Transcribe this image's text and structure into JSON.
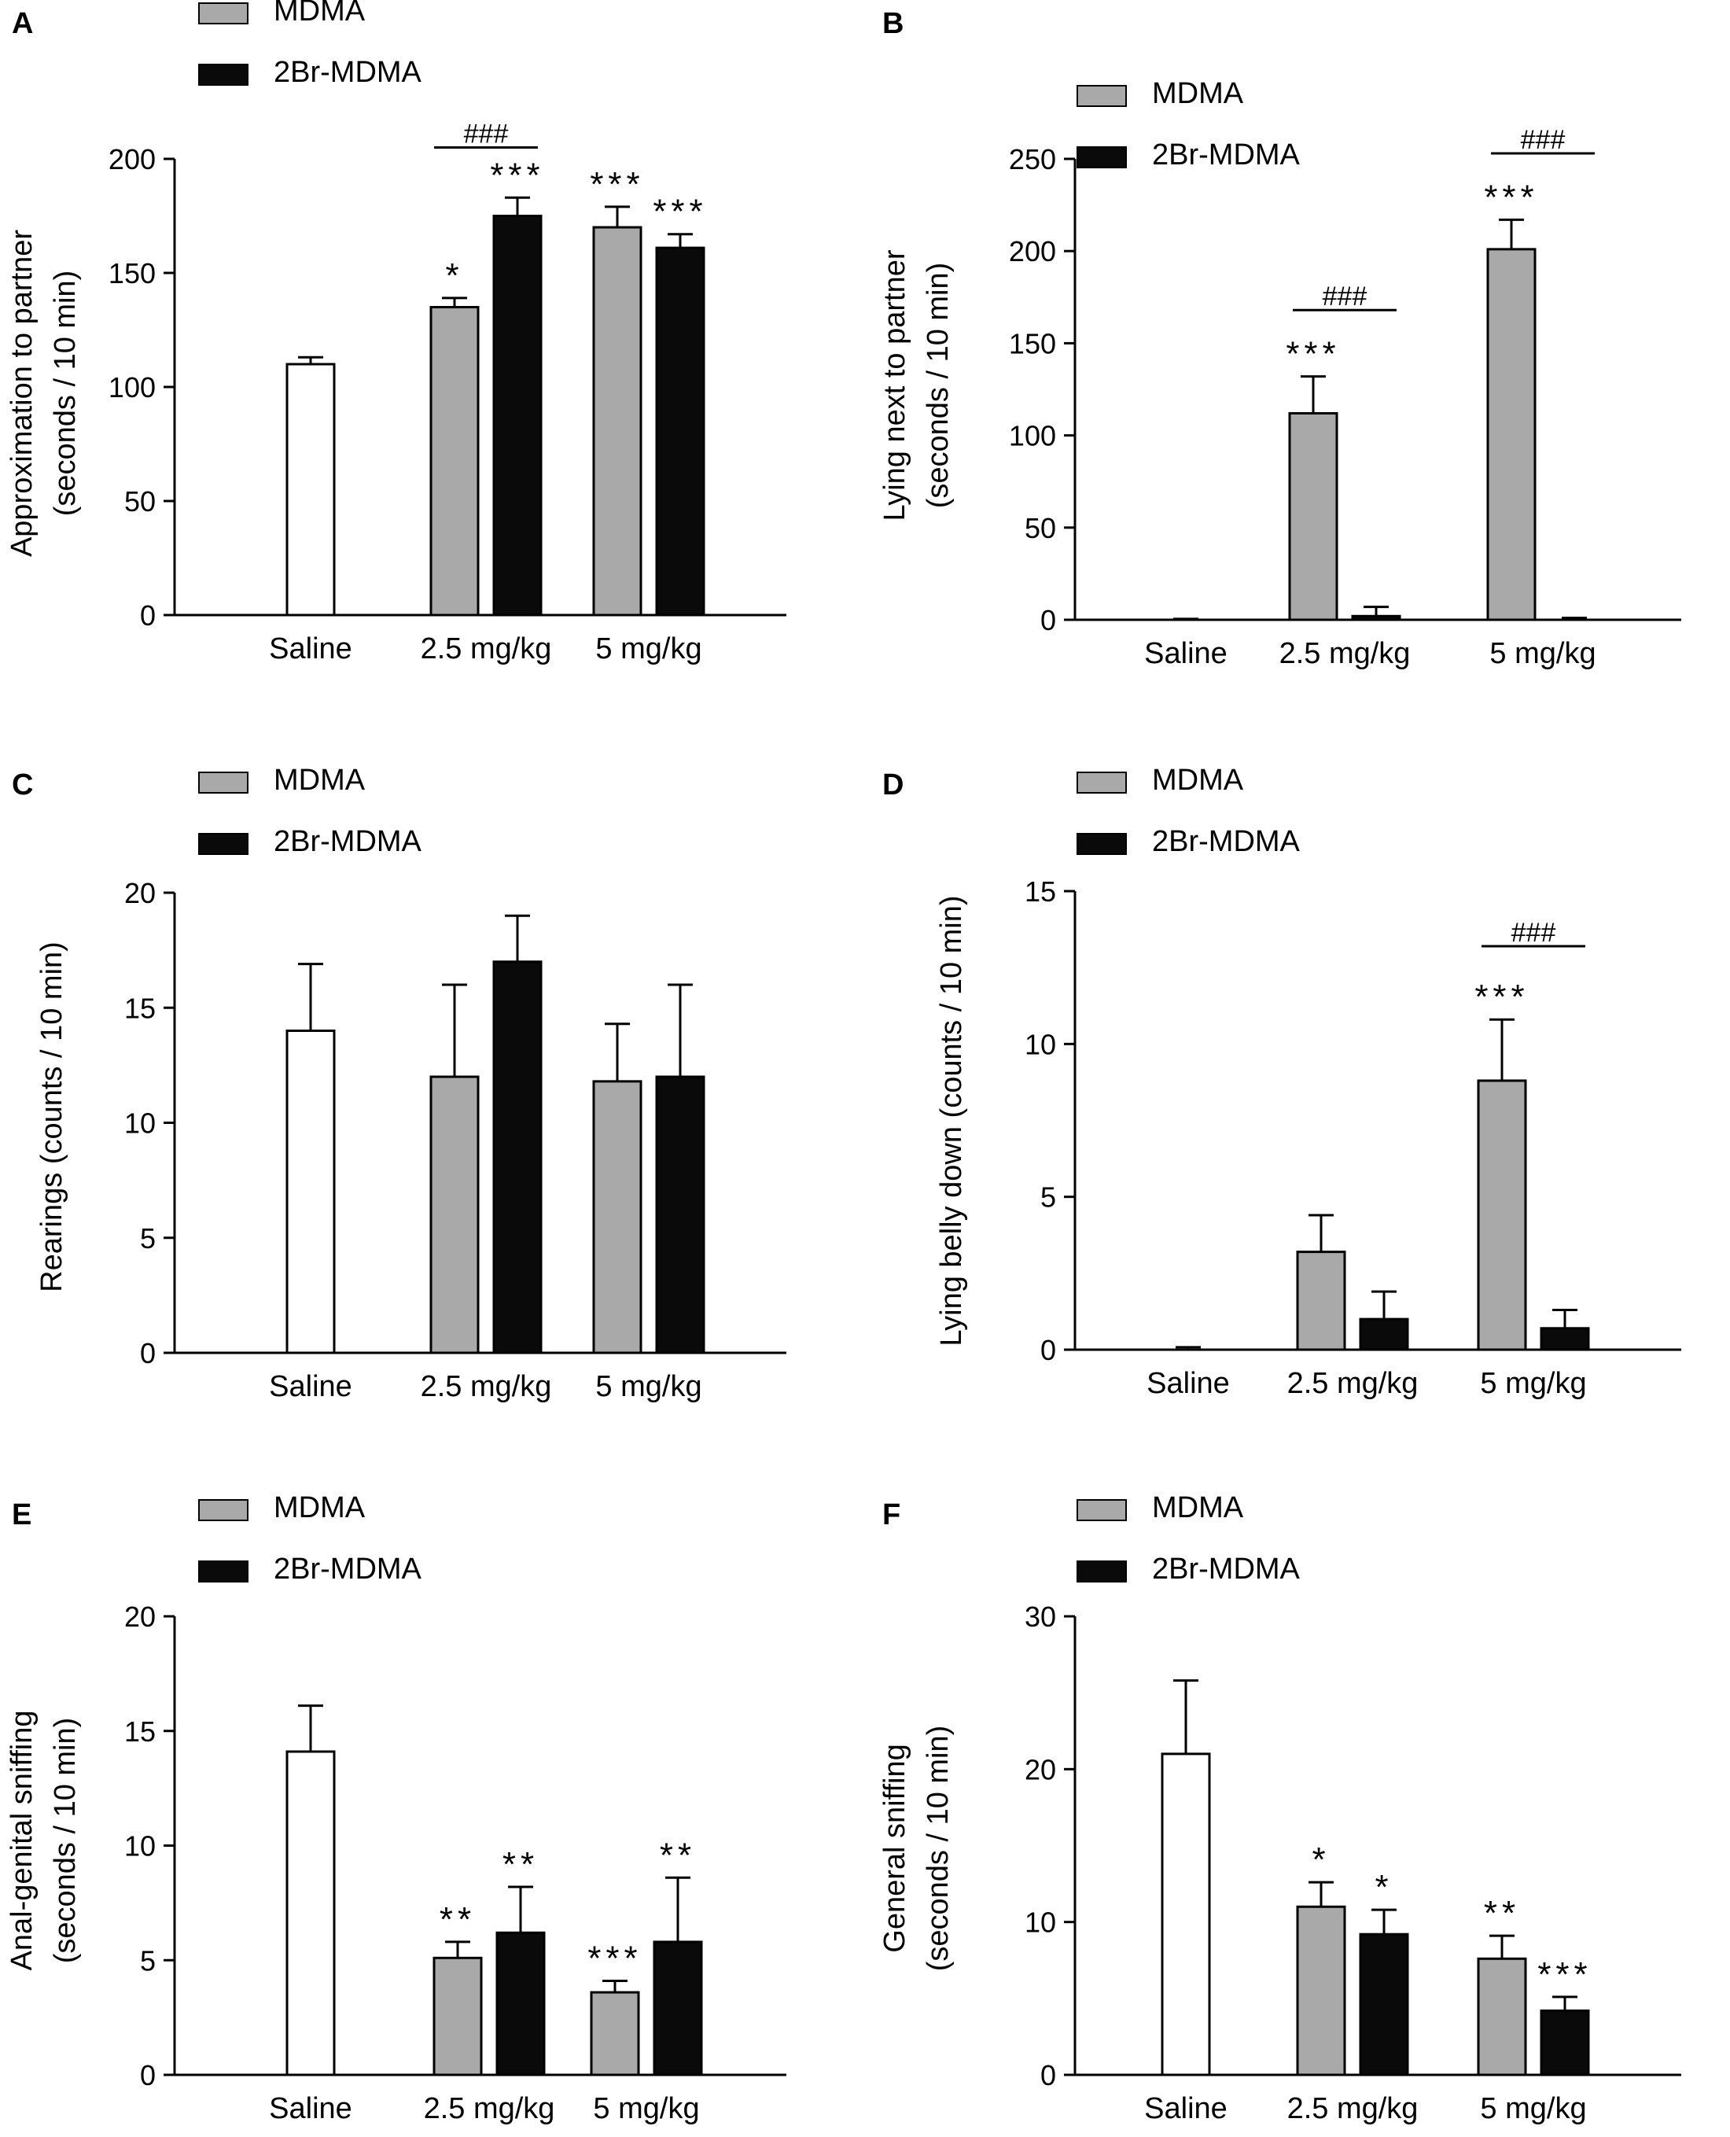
{
  "legend": {
    "mdma": "MDMA",
    "br": "2Br-MDMA"
  },
  "colors": {
    "saline": "#ffffff",
    "mdma": "#a9a9a9",
    "br": "#0a0a0a",
    "axis": "#000000",
    "sig": "#000000",
    "hash": "#888888"
  },
  "chart_data": [
    {
      "panel": "A",
      "type": "bar",
      "ylabel": [
        "Approximation to partner",
        "(seconds / 10 min)"
      ],
      "ylim": [
        0,
        200
      ],
      "yticks": [
        0,
        50,
        100,
        150,
        200
      ],
      "categories": [
        "Saline",
        "2.5 mg/kg",
        "5 mg/kg"
      ],
      "bars": [
        {
          "group": 0,
          "series": "saline",
          "value": 110,
          "err": 3,
          "sig": ""
        },
        {
          "group": 1,
          "series": "mdma",
          "value": 135,
          "err": 4,
          "sig": "*"
        },
        {
          "group": 1,
          "series": "br",
          "value": 175,
          "err": 8,
          "sig": "***"
        },
        {
          "group": 2,
          "series": "mdma",
          "value": 170,
          "err": 9,
          "sig": "***"
        },
        {
          "group": 2,
          "series": "br",
          "value": 161,
          "err": 6,
          "sig": "***"
        }
      ],
      "hash": [
        {
          "group": 1,
          "label": "###",
          "y": 205
        }
      ]
    },
    {
      "panel": "B",
      "type": "bar",
      "ylabel": [
        "Lying next to partner",
        "(seconds / 10 min)"
      ],
      "ylim": [
        0,
        250
      ],
      "yticks": [
        0,
        50,
        100,
        150,
        200,
        250
      ],
      "categories": [
        "Saline",
        "2.5 mg/kg",
        "5 mg/kg"
      ],
      "bars": [
        {
          "group": 0,
          "series": "saline",
          "value": 0,
          "err": 0.5,
          "sig": ""
        },
        {
          "group": 1,
          "series": "mdma",
          "value": 112,
          "err": 20,
          "sig": "***"
        },
        {
          "group": 1,
          "series": "br",
          "value": 2,
          "err": 5,
          "sig": ""
        },
        {
          "group": 2,
          "series": "mdma",
          "value": 201,
          "err": 16,
          "sig": "***"
        },
        {
          "group": 2,
          "series": "br",
          "value": 0,
          "err": 1,
          "sig": ""
        }
      ],
      "hash": [
        {
          "group": 1,
          "label": "###",
          "y": 168
        },
        {
          "group": 2,
          "label": "###",
          "y": 253
        }
      ]
    },
    {
      "panel": "C",
      "type": "bar",
      "ylabel": [
        "Rearings (counts / 10 min)"
      ],
      "ylim": [
        0,
        20
      ],
      "yticks": [
        0,
        5,
        10,
        15,
        20
      ],
      "categories": [
        "Saline",
        "2.5 mg/kg",
        "5 mg/kg"
      ],
      "bars": [
        {
          "group": 0,
          "series": "saline",
          "value": 14,
          "err": 2.9,
          "sig": ""
        },
        {
          "group": 1,
          "series": "mdma",
          "value": 12,
          "err": 4,
          "sig": ""
        },
        {
          "group": 1,
          "series": "br",
          "value": 17,
          "err": 2,
          "sig": ""
        },
        {
          "group": 2,
          "series": "mdma",
          "value": 11.8,
          "err": 2.5,
          "sig": ""
        },
        {
          "group": 2,
          "series": "br",
          "value": 12,
          "err": 4,
          "sig": ""
        }
      ],
      "hash": []
    },
    {
      "panel": "D",
      "type": "bar",
      "ylabel": [
        "Lying belly down (counts / 10 min)"
      ],
      "ylim": [
        0,
        15
      ],
      "yticks": [
        0,
        5,
        10,
        15
      ],
      "categories": [
        "Saline",
        "2.5 mg/kg",
        "5 mg/kg"
      ],
      "bars": [
        {
          "group": 0,
          "series": "saline",
          "value": 0,
          "err": 0.08,
          "sig": ""
        },
        {
          "group": 1,
          "series": "mdma",
          "value": 3.2,
          "err": 1.2,
          "sig": ""
        },
        {
          "group": 1,
          "series": "br",
          "value": 1,
          "err": 0.9,
          "sig": ""
        },
        {
          "group": 2,
          "series": "mdma",
          "value": 8.8,
          "err": 2,
          "sig": "***"
        },
        {
          "group": 2,
          "series": "br",
          "value": 0.7,
          "err": 0.6,
          "sig": ""
        }
      ],
      "hash": [
        {
          "group": 2,
          "label": "###",
          "y": 13.2
        }
      ]
    },
    {
      "panel": "E",
      "type": "bar",
      "ylabel": [
        "Anal-genital sniffing",
        "(seconds / 10 min)"
      ],
      "ylim": [
        0,
        20
      ],
      "yticks": [
        0,
        5,
        10,
        15,
        20
      ],
      "categories": [
        "Saline",
        "2.5 mg/kg",
        "5 mg/kg"
      ],
      "bars": [
        {
          "group": 0,
          "series": "saline",
          "value": 14.1,
          "err": 2,
          "sig": ""
        },
        {
          "group": 1,
          "series": "mdma",
          "value": 5.1,
          "err": 0.7,
          "sig": "**"
        },
        {
          "group": 1,
          "series": "br",
          "value": 6.2,
          "err": 2,
          "sig": "**"
        },
        {
          "group": 2,
          "series": "mdma",
          "value": 3.6,
          "err": 0.5,
          "sig": "***"
        },
        {
          "group": 2,
          "series": "br",
          "value": 5.8,
          "err": 2.8,
          "sig": "**"
        }
      ],
      "hash": []
    },
    {
      "panel": "F",
      "type": "bar",
      "ylabel": [
        "General sniffing",
        "(seconds / 10 min)"
      ],
      "ylim": [
        0,
        30
      ],
      "yticks": [
        0,
        10,
        20,
        30
      ],
      "categories": [
        "Saline",
        "2.5 mg/kg",
        "5 mg/kg"
      ],
      "bars": [
        {
          "group": 0,
          "series": "saline",
          "value": 21,
          "err": 4.8,
          "sig": ""
        },
        {
          "group": 1,
          "series": "mdma",
          "value": 11,
          "err": 1.6,
          "sig": "*"
        },
        {
          "group": 1,
          "series": "br",
          "value": 9.2,
          "err": 1.6,
          "sig": "*"
        },
        {
          "group": 2,
          "series": "mdma",
          "value": 7.6,
          "err": 1.5,
          "sig": "**"
        },
        {
          "group": 2,
          "series": "br",
          "value": 4.2,
          "err": 0.9,
          "sig": "***"
        }
      ],
      "hash": []
    }
  ]
}
